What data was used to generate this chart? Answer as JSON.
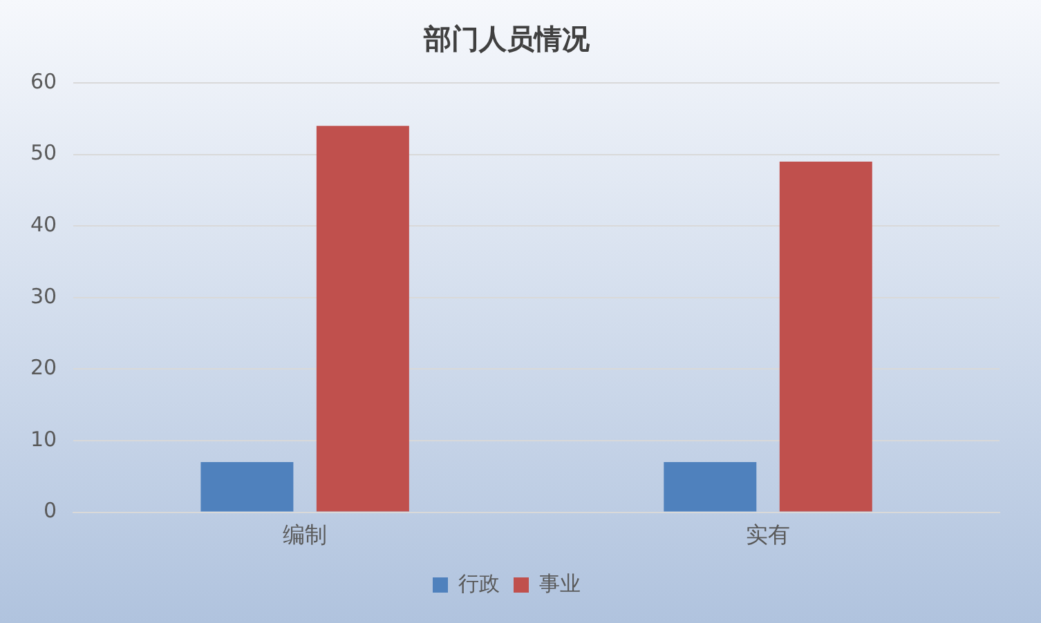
{
  "chart_data": {
    "type": "bar",
    "title": "部门人员情况",
    "categories": [
      "编制",
      "实有"
    ],
    "series": [
      {
        "name": "行政",
        "color": "#4f81bd",
        "values": [
          7,
          7
        ]
      },
      {
        "name": "事业",
        "color": "#c0504d",
        "values": [
          54,
          49
        ]
      }
    ],
    "ylim": [
      0,
      60
    ],
    "yticks": [
      0,
      10,
      20,
      30,
      40,
      50,
      60
    ],
    "grid": "y",
    "legend": "bottom"
  }
}
